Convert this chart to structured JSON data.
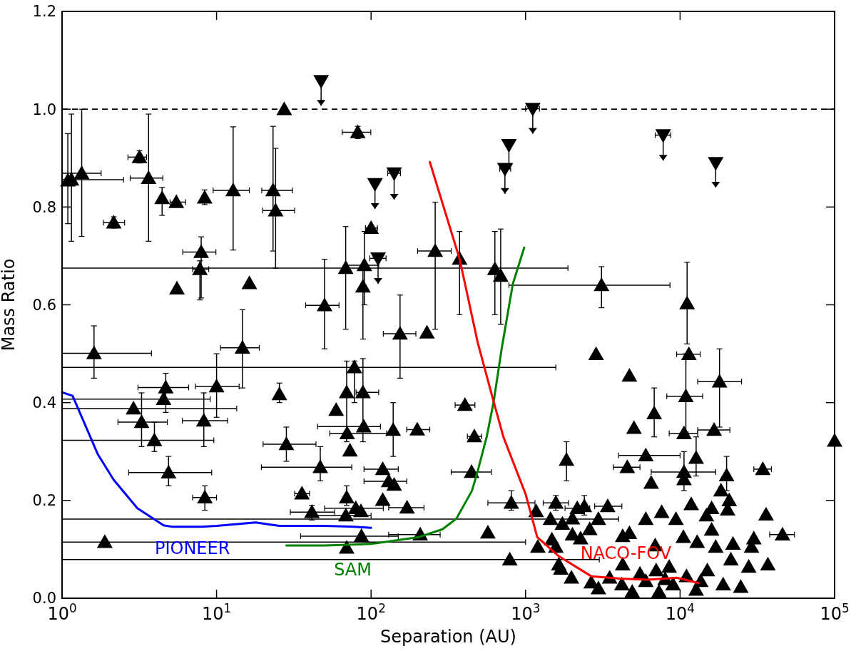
{
  "chart_data": {
    "type": "scatter",
    "xlabel": "Separation (AU)",
    "ylabel": "Mass Ratio",
    "log": "x",
    "grid": false,
    "xlim": [
      1,
      100000
    ],
    "ylim": [
      0,
      1.2
    ],
    "xticks": [
      {
        "value": 1,
        "label": "10$^{0}$"
      },
      {
        "value": 10,
        "label": "10$^{1}$"
      },
      {
        "value": 100,
        "label": "10$^{2}$"
      },
      {
        "value": 1000,
        "label": "10$^{3}$"
      },
      {
        "value": 10000,
        "label": "10$^{4}$"
      },
      {
        "value": 100000,
        "label": "10$^{5}$"
      }
    ],
    "yticks": [
      {
        "value": 0,
        "label": "0.0"
      },
      {
        "value": 0.2,
        "label": "0.2"
      },
      {
        "value": 0.4,
        "label": "0.4"
      },
      {
        "value": 0.6,
        "label": "0.6"
      },
      {
        "value": 0.8,
        "label": "0.8"
      },
      {
        "value": 1,
        "label": "1.0"
      },
      {
        "value": 1.2,
        "label": "1.2"
      }
    ],
    "ref_lines": [
      {
        "axis": "y",
        "value": 1,
        "color": "#000000",
        "line_style": "dashed"
      }
    ],
    "series": [
      {
        "marker": "triangle",
        "color": "#000000",
        "x": [
          1.09,
          1.15,
          1.34,
          2.16,
          3.17,
          3.63,
          4.44,
          5.49,
          8.37,
          7.95,
          7.8,
          5.54,
          12.8,
          23.2,
          24.1,
          16.3,
          27.4,
          50,
          68.5,
          1.61,
          14.7,
          82,
          100,
          260,
          374,
          633,
          690,
          3100,
          90.5,
          88.6,
          154,
          230,
          78,
          69.5,
          88.6,
          59.4,
          70,
          89.6,
          73,
          139,
          199,
          119,
          130,
          141,
          69.5,
          79.6,
          86,
          68.7,
          119,
          171,
          86.6,
          208,
          69.5,
          405,
          466,
          447,
          808,
          570,
          790,
          1200,
          1170,
          1840,
          2860,
          4700,
          5030,
          4550,
          1570,
          1450,
          1730,
          2160,
          2400,
          2960,
          3400,
          2010,
          2600,
          2270,
          2010,
          1480,
          1570,
          4250,
          4700,
          1690,
          1980,
          2660,
          2960,
          1640,
          4250,
          11100,
          11400,
          18000,
          10900,
          6800,
          10600,
          16600,
          6000,
          12700,
          10600,
          10600,
          6500,
          20000,
          34300,
          18400,
          20800,
          20300,
          11800,
          16000,
          7600,
          14800,
          36000,
          6000,
          9400,
          16000,
          46000,
          30000,
          10500,
          6900,
          17000,
          22000,
          29000,
          12900,
          21300,
          37000,
          27800,
          24700,
          19000,
          12700,
          5500,
          6000,
          7000,
          8000,
          9000,
          11000,
          13600,
          15000,
          3500,
          4200,
          8500,
          7300,
          4900,
          100000,
          4.69,
          4.54,
          2.9,
          3.27,
          3.96,
          4.89,
          8.27,
          10,
          8.4,
          1.89,
          25.5,
          28.3,
          46.9,
          35.7,
          41.4
        ],
        "values": [
          0.854,
          0.856,
          0.869,
          0.768,
          0.902,
          0.859,
          0.818,
          0.81,
          0.819,
          0.708,
          0.673,
          0.633,
          0.834,
          0.834,
          0.793,
          0.644,
          1.0,
          0.599,
          0.675,
          0.501,
          0.512,
          0.953,
          0.757,
          0.71,
          0.694,
          0.673,
          0.659,
          0.64,
          0.681,
          0.637,
          0.541,
          0.543,
          0.472,
          0.421,
          0.421,
          0.385,
          0.337,
          0.351,
          0.302,
          0.344,
          0.345,
          0.264,
          0.239,
          0.232,
          0.206,
          0.184,
          0.178,
          0.169,
          0.201,
          0.185,
          0.127,
          0.13,
          0.103,
          0.395,
          0.331,
          0.258,
          0.195,
          0.134,
          0.079,
          0.105,
          0.178,
          0.283,
          0.499,
          0.455,
          0.348,
          0.268,
          0.195,
          0.162,
          0.152,
          0.184,
          0.188,
          0.162,
          0.188,
          0.163,
          0.141,
          0.122,
          0.13,
          0.12,
          0.105,
          0.127,
          0.133,
          0.06,
          0.042,
          0.032,
          0.02,
          0.069,
          0.069,
          0.603,
          0.499,
          0.443,
          0.413,
          0.378,
          0.337,
          0.344,
          0.292,
          0.287,
          0.258,
          0.243,
          0.236,
          0.251,
          0.264,
          0.22,
          0.2,
          0.181,
          0.192,
          0.184,
          0.176,
          0.169,
          0.171,
          0.162,
          0.162,
          0.14,
          0.13,
          0.122,
          0.125,
          0.108,
          0.105,
          0.111,
          0.105,
          0.115,
          0.079,
          0.069,
          0.064,
          0.023,
          0.028,
          0.017,
          0.05,
          0.035,
          0.057,
          0.039,
          0.028,
          0.045,
          0.035,
          0.057,
          0.042,
          0.028,
          0.064,
          0.013,
          0.013,
          0.322,
          0.431,
          0.407,
          0.388,
          0.36,
          0.323,
          0.257,
          0.363,
          0.433,
          0.206,
          0.115,
          0.417,
          0.315,
          0.268,
          0.214,
          0.176
        ],
        "errors": [
          [
            0.766,
            0.95
          ],
          [
            0.73,
            0.99
          ],
          [
            0.74,
            1.0
          ],
          [
            0.757,
            0.78
          ],
          [
            0.89,
            0.915
          ],
          [
            0.73,
            0.99
          ],
          [
            0.783,
            0.84
          ],
          null,
          [
            0.805,
            0.835
          ],
          [
            0.614,
            0.739
          ],
          [
            0.61,
            0.69
          ],
          null,
          [
            0.712,
            0.964
          ],
          [
            0.71,
            0.965
          ],
          [
            0.675,
            0.92
          ],
          null,
          null,
          [
            0.51,
            0.693
          ],
          [
            0.55,
            0.76
          ],
          [
            0.45,
            0.557
          ],
          [
            0.43,
            0.59
          ],
          [
            0.94,
            0.965
          ],
          null,
          [
            0.55,
            0.81
          ],
          [
            0.58,
            0.75
          ],
          [
            0.58,
            0.75
          ],
          [
            0.56,
            0.755
          ],
          [
            0.594,
            0.678
          ],
          [
            0.6,
            0.75
          ],
          [
            0.53,
            0.68
          ],
          [
            0.45,
            0.62
          ],
          null,
          [
            0.4,
            0.485
          ],
          [
            0.32,
            0.485
          ],
          [
            0.32,
            0.49
          ],
          null,
          null,
          null,
          null,
          [
            0.29,
            0.4
          ],
          null,
          null,
          null,
          null,
          [
            0.19,
            0.23
          ],
          null,
          null,
          null,
          null,
          null,
          null,
          null,
          null,
          null,
          null,
          null,
          [
            0.18,
            0.22
          ],
          null,
          null,
          null,
          null,
          [
            0.24,
            0.32
          ],
          null,
          null,
          null,
          null,
          [
            0.18,
            0.21
          ],
          null,
          null,
          null,
          [
            0.17,
            0.21
          ],
          null,
          null,
          null,
          null,
          null,
          null,
          null,
          null,
          null,
          null,
          null,
          null,
          null,
          null,
          null,
          null,
          [
            0.52,
            0.687
          ],
          null,
          [
            0.35,
            0.51
          ],
          [
            0.34,
            0.5
          ],
          [
            0.33,
            0.43
          ],
          null,
          null,
          null,
          [
            0.25,
            0.33
          ],
          [
            0.22,
            0.3
          ],
          null,
          null,
          [
            0.22,
            0.29
          ],
          null,
          null,
          null,
          null,
          null,
          null,
          null,
          null,
          null,
          null,
          null,
          null,
          null,
          null,
          null,
          null,
          null,
          null,
          null,
          null,
          null,
          null,
          null,
          null,
          null,
          null,
          null,
          null,
          null,
          null,
          null,
          null,
          null,
          null,
          null,
          null,
          null,
          null,
          null,
          null,
          [
            0.38,
            0.46
          ],
          null,
          null,
          [
            0.31,
            0.42
          ],
          [
            0.3,
            0.36
          ],
          [
            0.23,
            0.29
          ],
          [
            0.31,
            0.42
          ],
          [
            0.37,
            0.5
          ],
          [
            0.18,
            0.23
          ],
          null,
          [
            0.4,
            0.44
          ],
          [
            0.28,
            0.35
          ],
          [
            0.24,
            0.31
          ],
          null,
          [
            0.16,
            0.19
          ]
        ],
        "xerrors": [
          null,
          [
            1,
            2.5
          ],
          [
            1,
            1.79
          ],
          [
            1.85,
            2.54
          ],
          [
            2.67,
            3.52
          ],
          [
            2.76,
            4.49
          ],
          null,
          [
            5,
            6.3
          ],
          null,
          [
            6.04,
            9.9
          ],
          [
            7,
            8.9
          ],
          null,
          [
            9.5,
            16.3
          ],
          [
            19.6,
            31
          ],
          [
            19.9,
            32
          ],
          null,
          null,
          [
            37.7,
            62
          ],
          [
            1,
            1880
          ],
          [
            1,
            3.79
          ],
          [
            10.6,
            18.9
          ],
          [
            65,
            99.6
          ],
          [
            92,
            110
          ],
          [
            200,
            330
          ],
          null,
          null,
          null,
          [
            780,
            8600
          ],
          [
            70,
            112
          ],
          null,
          [
            120,
            195
          ],
          null,
          [
            1,
            1570
          ],
          null,
          [
            80,
            112
          ],
          null,
          [
            54,
            126
          ],
          [
            45,
            115
          ],
          null,
          null,
          [
            170,
            240
          ],
          [
            90,
            150
          ],
          [
            90,
            170
          ],
          null,
          null,
          [
            50,
            120
          ],
          null,
          [
            40,
            100
          ],
          null,
          [
            130,
            220
          ],
          [
            35,
            150
          ],
          [
            130,
            280
          ],
          null,
          [
            350,
            470
          ],
          [
            420,
            520
          ],
          [
            330,
            600
          ],
          [
            570,
            1150
          ],
          null,
          [
            1,
            3000
          ],
          null,
          null,
          null,
          null,
          null,
          null,
          [
            3700,
            5500
          ],
          [
            1300,
            1900
          ],
          [
            1,
            4000
          ],
          null,
          [
            1800,
            2600
          ],
          null,
          null,
          [
            2800,
            4200
          ],
          null,
          null,
          null,
          null,
          null,
          null,
          null,
          null,
          null,
          null,
          null,
          null,
          null,
          null,
          null,
          [
            9500,
            13500
          ],
          [
            13000,
            25000
          ],
          [
            8200,
            14000
          ],
          null,
          [
            8500,
            13000
          ],
          [
            13000,
            21000
          ],
          [
            4000,
            10000
          ],
          null,
          [
            6500,
            17000
          ],
          null,
          null,
          null,
          [
            30000,
            39000
          ],
          null,
          null,
          null,
          null,
          null,
          null,
          null,
          null,
          null,
          null,
          null,
          [
            38000,
            55000
          ],
          null,
          null,
          null,
          null,
          null,
          null,
          null,
          null,
          null,
          null,
          null,
          null,
          null,
          null,
          null,
          null,
          null,
          null,
          null,
          null,
          null,
          null,
          null,
          null,
          null,
          null,
          null,
          [
            3.1,
            6.6
          ],
          [
            1,
            9.1
          ],
          [
            1,
            13.5
          ],
          [
            2.3,
            4.8
          ],
          [
            1,
            9.6
          ],
          [
            2.7,
            9.3
          ],
          [
            6,
            11.8
          ],
          [
            7.3,
            14
          ],
          [
            7,
            10
          ],
          [
            1,
            1000
          ],
          null,
          [
            20,
            44
          ],
          [
            19.5,
            75
          ],
          [
            32,
            40
          ],
          [
            30,
            58
          ]
        ]
      },
      {
        "marker": "triangle_down",
        "color": "#000000",
        "x": [
          47.5,
          106,
          141,
          111,
          1113,
          780,
          735,
          7770,
          17000
        ],
        "values": [
          1.058,
          0.847,
          0.869,
          0.695,
          1.001,
          0.927,
          0.878,
          0.947,
          0.89
        ],
        "errors": [
          [
            1.007,
            1.058
          ],
          [
            0.796,
            0.847
          ],
          [
            0.815,
            0.869
          ],
          [
            0.643,
            0.695
          ],
          [
            0.95,
            1.001
          ],
          [
            0.877,
            0.927
          ],
          [
            0.827,
            0.878
          ],
          [
            0.895,
            0.947
          ],
          [
            0.84,
            0.89
          ]
        ],
        "xerrors": [
          null,
          null,
          [
            128,
            155
          ],
          [
            98,
            125
          ],
          [
            1000,
            1230
          ],
          null,
          [
            680,
            800
          ],
          [
            6900,
            8700
          ],
          null
        ]
      },
      {
        "type": "line",
        "name": "PIONEER",
        "color": "#0000ff",
        "marker": "none",
        "x": [
          1,
          1.17,
          1.7,
          2.16,
          3.07,
          4.54,
          5.2,
          8,
          10,
          17.9,
          25.5,
          50,
          78,
          100
        ],
        "values": [
          0.421,
          0.414,
          0.295,
          0.242,
          0.184,
          0.149,
          0.146,
          0.146,
          0.148,
          0.155,
          0.148,
          0.148,
          0.146,
          0.144
        ]
      },
      {
        "type": "line",
        "name": "SAM",
        "color": "#008000",
        "marker": "none",
        "x": [
          28.3,
          50,
          100,
          204,
          290,
          357,
          450,
          490,
          560,
          620,
          700,
          827,
          980
        ],
        "values": [
          0.108,
          0.108,
          0.111,
          0.125,
          0.141,
          0.163,
          0.22,
          0.26,
          0.33,
          0.4,
          0.51,
          0.643,
          0.717
        ]
      },
      {
        "type": "line",
        "name": "NACO-FOV",
        "color": "#ff0000",
        "marker": "none",
        "x": [
          240,
          374,
          490,
          620,
          720,
          1000,
          1190,
          1640,
          2660,
          4100,
          6200,
          9500,
          13200
        ],
        "values": [
          0.892,
          0.694,
          0.523,
          0.403,
          0.329,
          0.213,
          0.125,
          0.086,
          0.045,
          0.04,
          0.038,
          0.042,
          0.031
        ]
      }
    ]
  }
}
